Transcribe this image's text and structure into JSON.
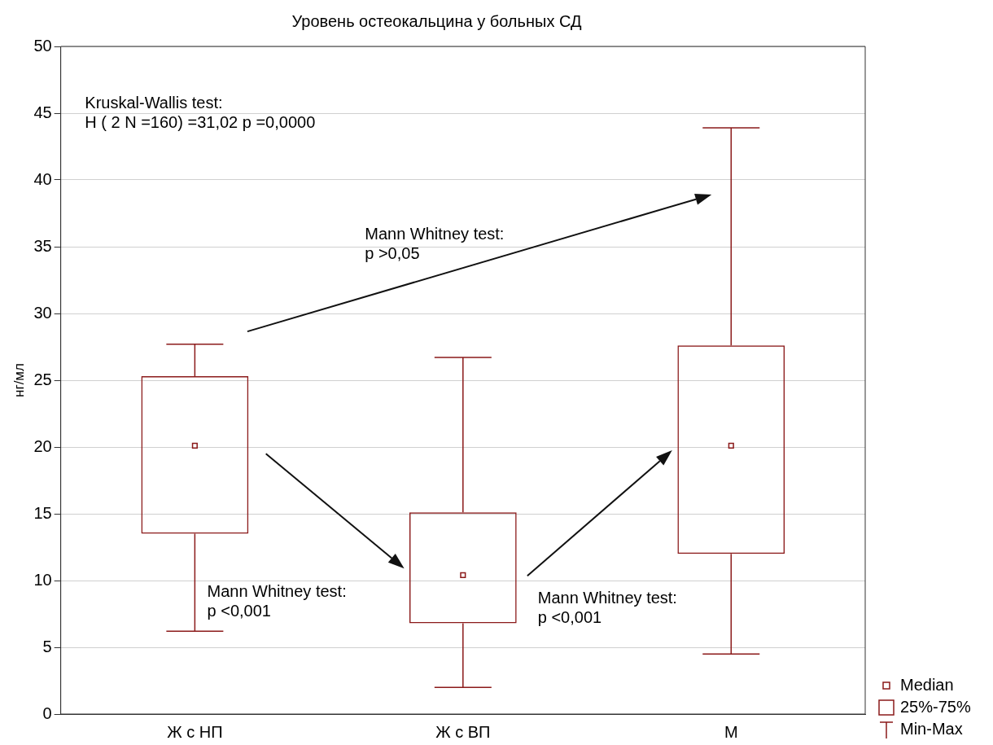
{
  "chart_data": {
    "type": "box",
    "title": "Уровень остеокальцина у больных СД",
    "ylabel": "нг/мл",
    "categories": [
      "Ж с НП",
      "Ж с ВП",
      "М"
    ],
    "color": "#8b1a1a",
    "boxes": [
      {
        "low": 6.2,
        "q1": 13.5,
        "median": 20.1,
        "q3": 25.3,
        "high": 27.7
      },
      {
        "low": 2,
        "q1": 6.8,
        "median": 10.4,
        "q3": 15.1,
        "high": 26.7
      },
      {
        "low": 4.5,
        "q1": 12,
        "median": 20.1,
        "q3": 27.6,
        "high": 43.9
      }
    ],
    "ylim": [
      0,
      50
    ],
    "yticks": [
      0,
      5,
      10,
      15,
      20,
      25,
      30,
      35,
      40,
      45,
      50
    ],
    "grid": "y",
    "annotations": [
      "Kruskal-Wallis test:\nH ( 2 N =160) =31,02 p =0,0000",
      "Mann Whitney test:\np >0,05",
      "Mann Whitney test:\np <0,001",
      "Mann Whitney test:\np <0,001",
      "Median",
      "25%-75%",
      "Min-Max"
    ]
  }
}
